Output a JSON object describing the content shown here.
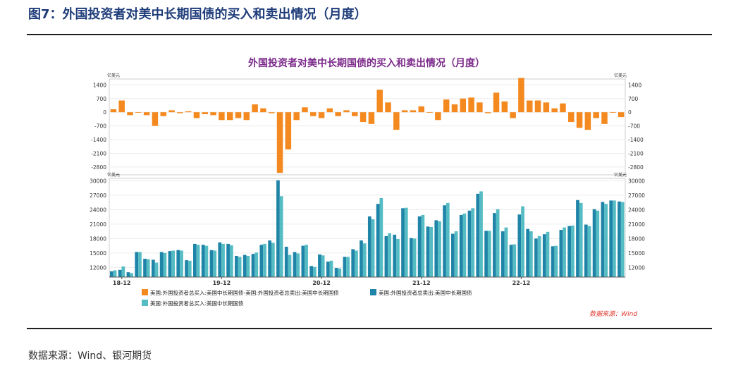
{
  "page": {
    "header_title": "图7：外国投资者对美中长期国债的买入和卖出情况（月度）",
    "source_footer": "数据来源：Wind、银河期货"
  },
  "chart_data": {
    "type": "bar",
    "title": "外国投资者对美中长期国债的买入和卖出情况（月度）",
    "source": "数据来源：Wind",
    "colors": {
      "net": "#f4891f",
      "sell": "#1f84a8",
      "buy": "#56bcc4",
      "title": "#7b2a8a",
      "source": "#e0342c"
    },
    "x_tick_labels": [
      {
        "label": "18-12",
        "index": 1
      },
      {
        "label": "19-12",
        "index": 13
      },
      {
        "label": "20-12",
        "index": 25
      },
      {
        "label": "21-12",
        "index": 37
      },
      {
        "label": "22-12",
        "index": 49
      }
    ],
    "panels": [
      {
        "name": "top",
        "unit": "亿美元",
        "ylim": [
          -3200,
          1700
        ],
        "ticks": [
          1400,
          700,
          0,
          -700,
          -1400,
          -2100,
          -2800
        ],
        "tick_labels": [
          "1400",
          "700",
          "0",
          "-700",
          "-1400",
          "-2100",
          "-2800"
        ]
      },
      {
        "name": "bottom",
        "unit": "亿美元",
        "ylim": [
          10000,
          30500
        ],
        "ticks": [
          30000,
          27000,
          24000,
          21000,
          18000,
          15000,
          12000
        ],
        "tick_labels": [
          "30000",
          "27000",
          "24000",
          "21000",
          "18000",
          "15000",
          "12000"
        ]
      }
    ],
    "series": [
      {
        "name": "美国:外国投资者总买入:美国中长期国债-美国:外国投资者总卖出:美国中长期国债",
        "panel": "top",
        "color": "#f4891f",
        "values": [
          150,
          600,
          -150,
          0,
          -150,
          -700,
          -200,
          100,
          -50,
          50,
          -300,
          -100,
          -150,
          -400,
          -400,
          -300,
          -400,
          400,
          200,
          -50,
          -3100,
          -1900,
          -400,
          250,
          -200,
          -300,
          200,
          -200,
          100,
          -200,
          -500,
          -600,
          1150,
          500,
          -900,
          100,
          100,
          300,
          0,
          -400,
          650,
          400,
          700,
          750,
          500,
          -50,
          1000,
          550,
          -300,
          1750,
          600,
          600,
          500,
          200,
          450,
          -500,
          -800,
          -900,
          -300,
          -600,
          0,
          -250
        ]
      },
      {
        "name": "美国:外国投资者总卖出:美国中长期国债",
        "panel": "bottom",
        "color": "#1f84a8",
        "values": [
          11200,
          11500,
          11000,
          15200,
          13800,
          13600,
          15200,
          15400,
          15600,
          13500,
          16900,
          16700,
          15600,
          17200,
          16900,
          14400,
          14600,
          14800,
          16700,
          17600,
          30100,
          16300,
          15200,
          16500,
          12300,
          14700,
          13200,
          11900,
          14200,
          15800,
          17600,
          22600,
          25200,
          18500,
          18800,
          24300,
          18100,
          22600,
          20500,
          21800,
          24900,
          19000,
          22900,
          23800,
          27300,
          19600,
          23300,
          19500,
          16700,
          23000,
          20000,
          18000,
          18900,
          16400,
          19800,
          20600,
          26000,
          20900,
          24100,
          25600,
          25900,
          25700
        ]
      },
      {
        "name": "美国:外国投资者总买入:美国中长期国债",
        "panel": "bottom",
        "color": "#56bcc4",
        "values": [
          11400,
          12200,
          10800,
          15200,
          13700,
          13000,
          15000,
          15500,
          15500,
          13400,
          16700,
          16500,
          15500,
          16900,
          16600,
          14200,
          14400,
          15100,
          16900,
          17100,
          26800,
          14600,
          14900,
          16700,
          12100,
          14500,
          13400,
          11800,
          14200,
          15500,
          17000,
          22000,
          26400,
          19100,
          17900,
          24400,
          18000,
          22900,
          20400,
          21600,
          25400,
          19500,
          23200,
          24300,
          27800,
          19600,
          24100,
          20300,
          16800,
          24700,
          19500,
          18500,
          19400,
          16500,
          20300,
          20700,
          25400,
          20600,
          23800,
          25200,
          25900,
          25600
        ]
      }
    ]
  }
}
